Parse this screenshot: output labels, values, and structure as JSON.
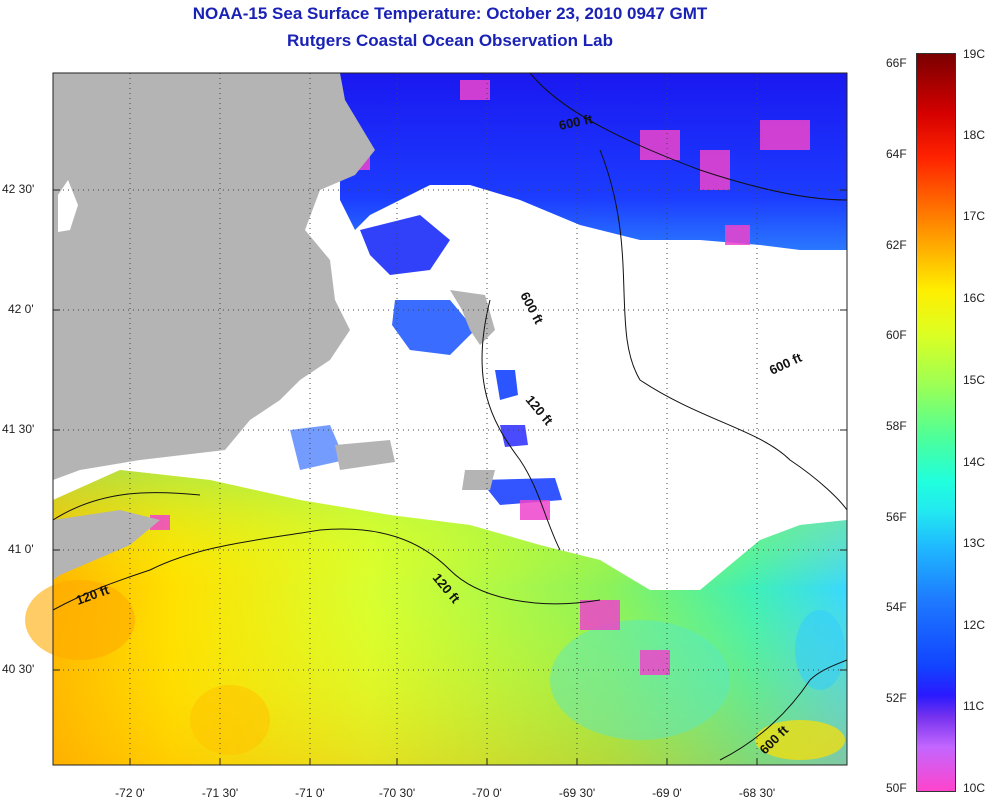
{
  "title": "NOAA-15 Sea Surface Temperature:  October 23, 2010 0947 GMT",
  "subtitle": "Rutgers Coastal Ocean Observation Lab",
  "map": {
    "lat_labels": [
      "42 30'",
      "42 0'",
      "41 30'",
      "41 0'",
      "40 30'"
    ],
    "lon_labels": [
      "-72 0'",
      "-71 30'",
      "-71 0'",
      "-70 30'",
      "-70 0'",
      "-69 30'",
      "-69 0'",
      "-68 30'"
    ],
    "contour_labels": [
      "600 ft",
      "600 ft",
      "600 ft",
      "120 ft",
      "120 ft",
      "120 ft",
      "600 ft"
    ]
  },
  "colorbar": {
    "fahrenheit": [
      "66F",
      "64F",
      "62F",
      "60F",
      "58F",
      "56F",
      "54F",
      "52F",
      "50F"
    ],
    "celsius": [
      "19C",
      "18C",
      "17C",
      "16C",
      "15C",
      "14C",
      "13C",
      "12C",
      "11C",
      "10C"
    ]
  },
  "colors": {
    "title": "#1a22b5",
    "land": "#b4b4b4",
    "cloud": "#ffffff",
    "warm": "#ffcc22",
    "cold": "#1122ee"
  }
}
